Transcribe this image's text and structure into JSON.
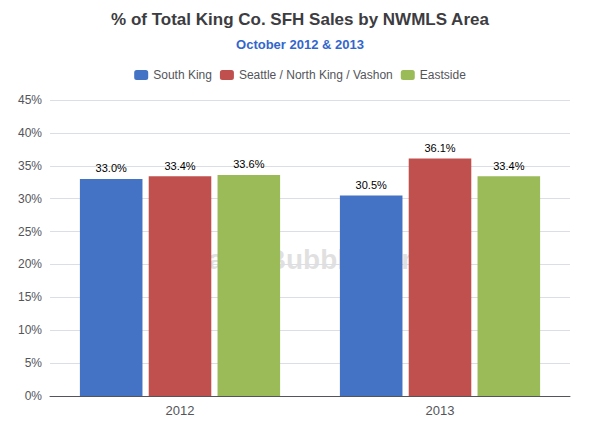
{
  "chart_data": {
    "type": "bar",
    "title": "% of Total King Co. SFH Sales by NWMLS Area",
    "subtitle": "October 2012 & 2013",
    "categories": [
      "2012",
      "2013"
    ],
    "series": [
      {
        "name": "South King",
        "color": "#4472C4",
        "values": [
          33.0,
          30.5
        ],
        "value_labels": [
          "33.0%",
          "30.5%"
        ]
      },
      {
        "name": "Seattle / North King / Vashon",
        "color": "#C0504D",
        "values": [
          33.4,
          36.1
        ],
        "value_labels": [
          "33.4%",
          "36.1%"
        ]
      },
      {
        "name": "Eastside",
        "color": "#9BBB59",
        "values": [
          33.6,
          33.4
        ],
        "value_labels": [
          "33.6%",
          "33.4%"
        ]
      }
    ],
    "ylim": [
      0,
      45
    ],
    "yticks": [
      {
        "value": 0,
        "label": "0%"
      },
      {
        "value": 5,
        "label": "5%"
      },
      {
        "value": 10,
        "label": "10%"
      },
      {
        "value": 15,
        "label": "15%"
      },
      {
        "value": 20,
        "label": "20%"
      },
      {
        "value": 25,
        "label": "25%"
      },
      {
        "value": 30,
        "label": "30%"
      },
      {
        "value": 35,
        "label": "35%"
      },
      {
        "value": 40,
        "label": "40%"
      },
      {
        "value": 45,
        "label": "45%"
      }
    ],
    "grid": true,
    "data_labels": true,
    "legend": "top",
    "annotation": "SeattleBubble.com"
  }
}
